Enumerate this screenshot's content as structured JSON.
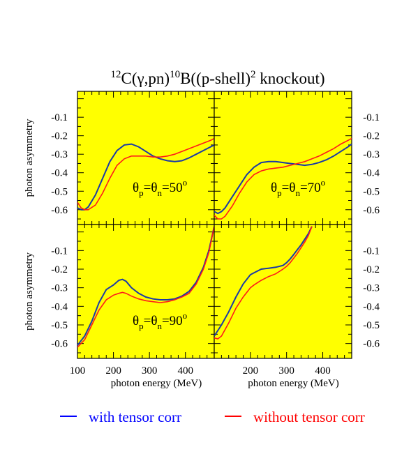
{
  "colors": {
    "panel_bg": "#ffff00",
    "with": "#1a3aa6",
    "without": "#ff1a1a",
    "legend_with": "#0000ff",
    "legend_without": "#ff0000"
  },
  "legend": {
    "with_label": "with tensor corr",
    "without_label": "without tensor corr"
  },
  "chart_data": {
    "type": "line",
    "title": "12C(γ,pn)10B((p-shell)2 knockout)",
    "title_parts": {
      "mass_a": "12",
      "reaction": "C(γ,pn)",
      "mass_b": "10",
      "nucleus": "B((p-shell)",
      "power": "2",
      "rest": " knockout)"
    },
    "xlabel": "photon energy (MeV)",
    "ylabel": "photon asymmetry",
    "xlim": [
      100,
      480
    ],
    "ylim": [
      -0.68,
      0.04
    ],
    "x_ticks": [
      "100",
      "200",
      "300",
      "400"
    ],
    "y_ticks": [
      "-0.1",
      "-0.2",
      "-0.3",
      "-0.4",
      "-0.5",
      "-0.6"
    ],
    "legend_position": "bottom",
    "panels": [
      {
        "label": {
          "prefix": "θ",
          "sub1": "p",
          "mid": "=θ",
          "sub2": "n",
          "value": "=50",
          "sup": "o"
        },
        "series": [
          {
            "name": "with tensor corr",
            "x": [
              100,
              110,
              120,
              130,
              150,
              170,
              190,
              210,
              230,
              250,
              270,
              290,
              310,
              330,
              350,
              370,
              390,
              410,
              430,
              450,
              470,
              480
            ],
            "y": [
              -0.59,
              -0.6,
              -0.6,
              -0.585,
              -0.52,
              -0.43,
              -0.34,
              -0.28,
              -0.25,
              -0.245,
              -0.26,
              -0.285,
              -0.31,
              -0.325,
              -0.335,
              -0.34,
              -0.335,
              -0.32,
              -0.3,
              -0.28,
              -0.26,
              -0.25
            ]
          },
          {
            "name": "without tensor corr",
            "x": [
              100,
              110,
              120,
              130,
              150,
              170,
              190,
              210,
              230,
              250,
              270,
              290,
              310,
              330,
              350,
              370,
              390,
              410,
              430,
              450,
              470,
              480
            ],
            "y": [
              -0.56,
              -0.59,
              -0.6,
              -0.6,
              -0.575,
              -0.51,
              -0.43,
              -0.36,
              -0.325,
              -0.31,
              -0.31,
              -0.31,
              -0.315,
              -0.315,
              -0.31,
              -0.3,
              -0.285,
              -0.27,
              -0.255,
              -0.24,
              -0.225,
              -0.215
            ]
          }
        ]
      },
      {
        "label": {
          "prefix": "θ",
          "sub1": "p",
          "mid": "=θ",
          "sub2": "n",
          "value": "=70",
          "sup": "o"
        },
        "series": [
          {
            "name": "with tensor corr",
            "x": [
              100,
              110,
              120,
              130,
              150,
              170,
              190,
              210,
              230,
              250,
              270,
              290,
              310,
              330,
              350,
              370,
              390,
              410,
              430,
              450,
              470,
              480
            ],
            "y": [
              -0.61,
              -0.62,
              -0.61,
              -0.59,
              -0.53,
              -0.47,
              -0.41,
              -0.37,
              -0.345,
              -0.34,
              -0.34,
              -0.345,
              -0.35,
              -0.355,
              -0.36,
              -0.355,
              -0.345,
              -0.33,
              -0.31,
              -0.285,
              -0.26,
              -0.245
            ]
          },
          {
            "name": "without tensor corr",
            "x": [
              100,
              110,
              120,
              130,
              150,
              170,
              190,
              210,
              230,
              250,
              270,
              290,
              310,
              330,
              350,
              370,
              390,
              410,
              430,
              450,
              470,
              480
            ],
            "y": [
              -0.63,
              -0.65,
              -0.65,
              -0.635,
              -0.58,
              -0.51,
              -0.45,
              -0.41,
              -0.39,
              -0.38,
              -0.375,
              -0.37,
              -0.36,
              -0.35,
              -0.34,
              -0.325,
              -0.31,
              -0.29,
              -0.27,
              -0.245,
              -0.225,
              -0.215
            ]
          }
        ]
      },
      {
        "label": {
          "prefix": "θ",
          "sub1": "p",
          "mid": "=θ",
          "sub2": "n",
          "value": "=90",
          "sup": "o"
        },
        "series": [
          {
            "name": "with tensor corr",
            "x": [
              100,
              120,
              140,
              160,
              180,
              200,
              215,
              225,
              235,
              250,
              270,
              290,
              310,
              330,
              350,
              370,
              390,
              410,
              430,
              450,
              465,
              480
            ],
            "y": [
              -0.61,
              -0.56,
              -0.48,
              -0.38,
              -0.31,
              -0.285,
              -0.26,
              -0.255,
              -0.265,
              -0.3,
              -0.33,
              -0.35,
              -0.36,
              -0.365,
              -0.365,
              -0.36,
              -0.345,
              -0.32,
              -0.27,
              -0.19,
              -0.1,
              0.03
            ]
          },
          {
            "name": "without tensor corr",
            "x": [
              100,
              120,
              140,
              160,
              180,
              200,
              215,
              225,
              235,
              250,
              270,
              290,
              310,
              330,
              350,
              370,
              390,
              410,
              430,
              450,
              465,
              480
            ],
            "y": [
              -0.62,
              -0.58,
              -0.5,
              -0.42,
              -0.365,
              -0.34,
              -0.33,
              -0.325,
              -0.33,
              -0.345,
              -0.36,
              -0.37,
              -0.375,
              -0.38,
              -0.375,
              -0.365,
              -0.35,
              -0.33,
              -0.28,
              -0.2,
              -0.11,
              0.03
            ]
          }
        ]
      },
      {
        "label": null,
        "series": [
          {
            "name": "with tensor corr",
            "x": [
              100,
              110,
              120,
              140,
              160,
              180,
              200,
              210,
              230,
              250,
              270,
              290,
              300,
              310,
              320,
              330,
              340,
              350,
              360,
              370
            ],
            "y": [
              -0.56,
              -0.53,
              -0.5,
              -0.43,
              -0.35,
              -0.28,
              -0.23,
              -0.22,
              -0.2,
              -0.195,
              -0.19,
              -0.18,
              -0.165,
              -0.145,
              -0.12,
              -0.095,
              -0.07,
              -0.04,
              -0.01,
              0.03
            ]
          },
          {
            "name": "without tensor corr",
            "x": [
              100,
              110,
              120,
              140,
              160,
              180,
              200,
              210,
              230,
              250,
              270,
              290,
              300,
              310,
              320,
              330,
              340,
              350,
              360,
              370
            ],
            "y": [
              -0.57,
              -0.575,
              -0.56,
              -0.49,
              -0.41,
              -0.35,
              -0.3,
              -0.285,
              -0.26,
              -0.24,
              -0.225,
              -0.2,
              -0.185,
              -0.165,
              -0.14,
              -0.115,
              -0.085,
              -0.055,
              -0.02,
              0.03
            ]
          }
        ]
      }
    ]
  }
}
